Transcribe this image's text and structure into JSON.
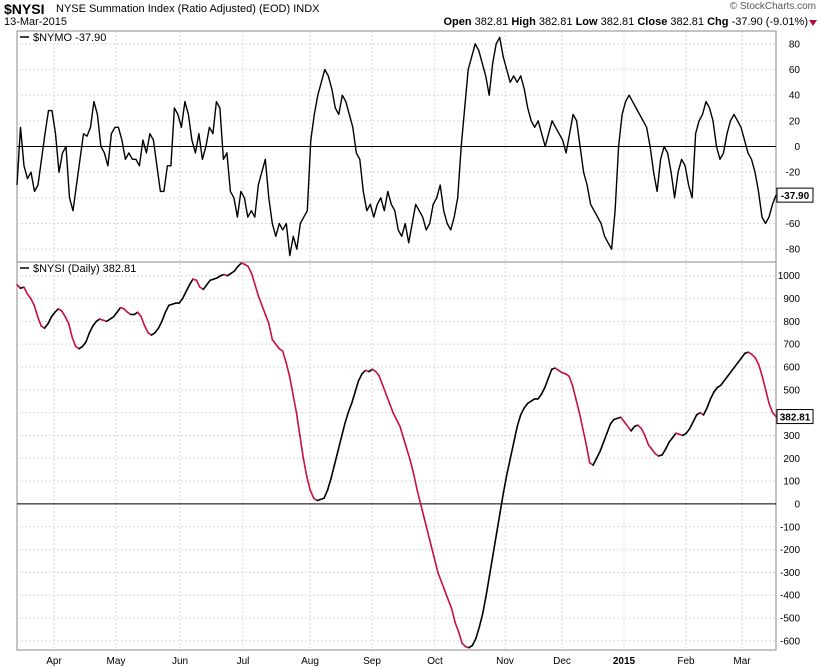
{
  "header": {
    "symbol": "$NYSI",
    "description": "NYSE Summation Index (Ratio Adjusted) (EOD) INDX",
    "date": "13-Mar-2015",
    "brand": "© StockCharts.com",
    "open_label": "Open",
    "open": "382.81",
    "high_label": "High",
    "high": "382.81",
    "low_label": "Low",
    "low": "382.81",
    "close_label": "Close",
    "close": "382.81",
    "chg_label": "Chg",
    "chg": "-37.90 (-9.01%)"
  },
  "colors": {
    "up": "#000000",
    "down": "#c8103f",
    "grid": "#d9d9d9",
    "frame": "#888888"
  },
  "chart_data": [
    {
      "type": "line",
      "name": "$NYMO",
      "legend": "$NYMO -37.90",
      "last_label": "-37.90",
      "ylim": [
        -90,
        90
      ],
      "y_ticks": [
        80,
        60,
        40,
        20,
        0,
        -20,
        -40,
        -60,
        -80
      ],
      "grid": true,
      "x_labels": [
        "Apr",
        "May",
        "Jun",
        "Jul",
        "Aug",
        "Sep",
        "Oct",
        "Nov",
        "Dec",
        "2015",
        "Feb",
        "Mar"
      ],
      "values": [
        -30,
        15,
        -15,
        -25,
        -20,
        -35,
        -30,
        -10,
        10,
        28,
        28,
        10,
        -20,
        -5,
        0,
        -40,
        -50,
        -30,
        -10,
        10,
        8,
        15,
        35,
        25,
        0,
        -5,
        -15,
        10,
        15,
        15,
        5,
        -10,
        -5,
        -10,
        -10,
        -15,
        5,
        -5,
        10,
        5,
        -15,
        -35,
        -35,
        -15,
        -15,
        30,
        25,
        15,
        35,
        25,
        5,
        -5,
        10,
        -10,
        0,
        15,
        10,
        35,
        30,
        -10,
        -5,
        -35,
        -40,
        -55,
        -35,
        -40,
        -55,
        -50,
        -55,
        -30,
        -20,
        -10,
        -40,
        -60,
        -70,
        -60,
        -65,
        -60,
        -85,
        -70,
        -80,
        -60,
        -55,
        -50,
        5,
        25,
        40,
        50,
        60,
        55,
        45,
        30,
        25,
        40,
        35,
        25,
        15,
        -5,
        -10,
        -35,
        -50,
        -45,
        -55,
        -45,
        -40,
        -50,
        -35,
        -45,
        -50,
        -65,
        -70,
        -60,
        -75,
        -60,
        -45,
        -50,
        -55,
        -65,
        -60,
        -45,
        -40,
        -30,
        -50,
        -60,
        -65,
        -55,
        -40,
        0,
        30,
        60,
        70,
        80,
        75,
        65,
        55,
        40,
        65,
        80,
        85,
        70,
        60,
        50,
        55,
        50,
        55,
        45,
        30,
        20,
        15,
        20,
        10,
        0,
        10,
        20,
        15,
        10,
        5,
        -5,
        10,
        25,
        20,
        0,
        -20,
        -30,
        -45,
        -50,
        -55,
        -60,
        -70,
        -75,
        -80,
        -50,
        0,
        25,
        35,
        40,
        35,
        30,
        25,
        20,
        15,
        0,
        -20,
        -35,
        -10,
        0,
        -5,
        -20,
        -40,
        -20,
        -10,
        -15,
        -30,
        -40,
        10,
        20,
        25,
        35,
        30,
        20,
        0,
        -10,
        -5,
        10,
        20,
        25,
        20,
        15,
        5,
        -5,
        -10,
        -20,
        -35,
        -55,
        -60,
        -55,
        -45,
        -37.9
      ]
    },
    {
      "type": "line",
      "name": "$NYSI (Daily)",
      "legend": "$NYSI (Daily) 382.81",
      "last_label": "382.81",
      "ylim": [
        -640,
        1060
      ],
      "y_ticks": [
        1000,
        900,
        800,
        700,
        600,
        500,
        400,
        300,
        200,
        100,
        0,
        -100,
        -200,
        -300,
        -400,
        -500,
        -600
      ],
      "grid": true,
      "zero_line": true,
      "x_labels": [
        "Apr",
        "May",
        "Jun",
        "Jul",
        "Aug",
        "Sep",
        "Oct",
        "Nov",
        "Dec",
        "2015",
        "Feb",
        "Mar"
      ],
      "values": [
        960,
        945,
        950,
        920,
        900,
        870,
        820,
        780,
        770,
        790,
        820,
        840,
        855,
        845,
        820,
        790,
        730,
        690,
        680,
        690,
        710,
        750,
        780,
        800,
        810,
        805,
        800,
        810,
        820,
        840,
        860,
        855,
        840,
        830,
        830,
        840,
        820,
        780,
        750,
        740,
        750,
        770,
        800,
        840,
        870,
        875,
        880,
        880,
        900,
        930,
        960,
        985,
        980,
        950,
        940,
        960,
        980,
        985,
        990,
        1000,
        1005,
        1000,
        1010,
        1020,
        1040,
        1055,
        1050,
        1040,
        1010,
        960,
        910,
        870,
        830,
        790,
        720,
        700,
        680,
        670,
        620,
        560,
        480,
        400,
        300,
        200,
        120,
        60,
        25,
        15,
        20,
        25,
        60,
        110,
        170,
        230,
        290,
        350,
        400,
        440,
        490,
        540,
        570,
        585,
        580,
        590,
        580,
        560,
        520,
        480,
        440,
        400,
        370,
        340,
        290,
        240,
        190,
        130,
        60,
        0,
        -60,
        -120,
        -180,
        -240,
        -300,
        -340,
        -380,
        -420,
        -460,
        -520,
        -560,
        -610,
        -625,
        -630,
        -620,
        -590,
        -540,
        -480,
        -400,
        -310,
        -220,
        -130,
        -40,
        50,
        130,
        200,
        270,
        340,
        390,
        420,
        440,
        450,
        460,
        460,
        480,
        510,
        550,
        590,
        595,
        585,
        575,
        570,
        560,
        520,
        460,
        400,
        330,
        260,
        180,
        170,
        200,
        230,
        270,
        310,
        350,
        370,
        375,
        380,
        360,
        340,
        320,
        340,
        345,
        330,
        300,
        260,
        240,
        220,
        210,
        215,
        240,
        270,
        290,
        310,
        305,
        300,
        310,
        330,
        360,
        390,
        400,
        390,
        420,
        460,
        490,
        510,
        520,
        540,
        560,
        580,
        600,
        620,
        640,
        660,
        665,
        655,
        640,
        610,
        560,
        500,
        440,
        400,
        382.81
      ]
    }
  ]
}
